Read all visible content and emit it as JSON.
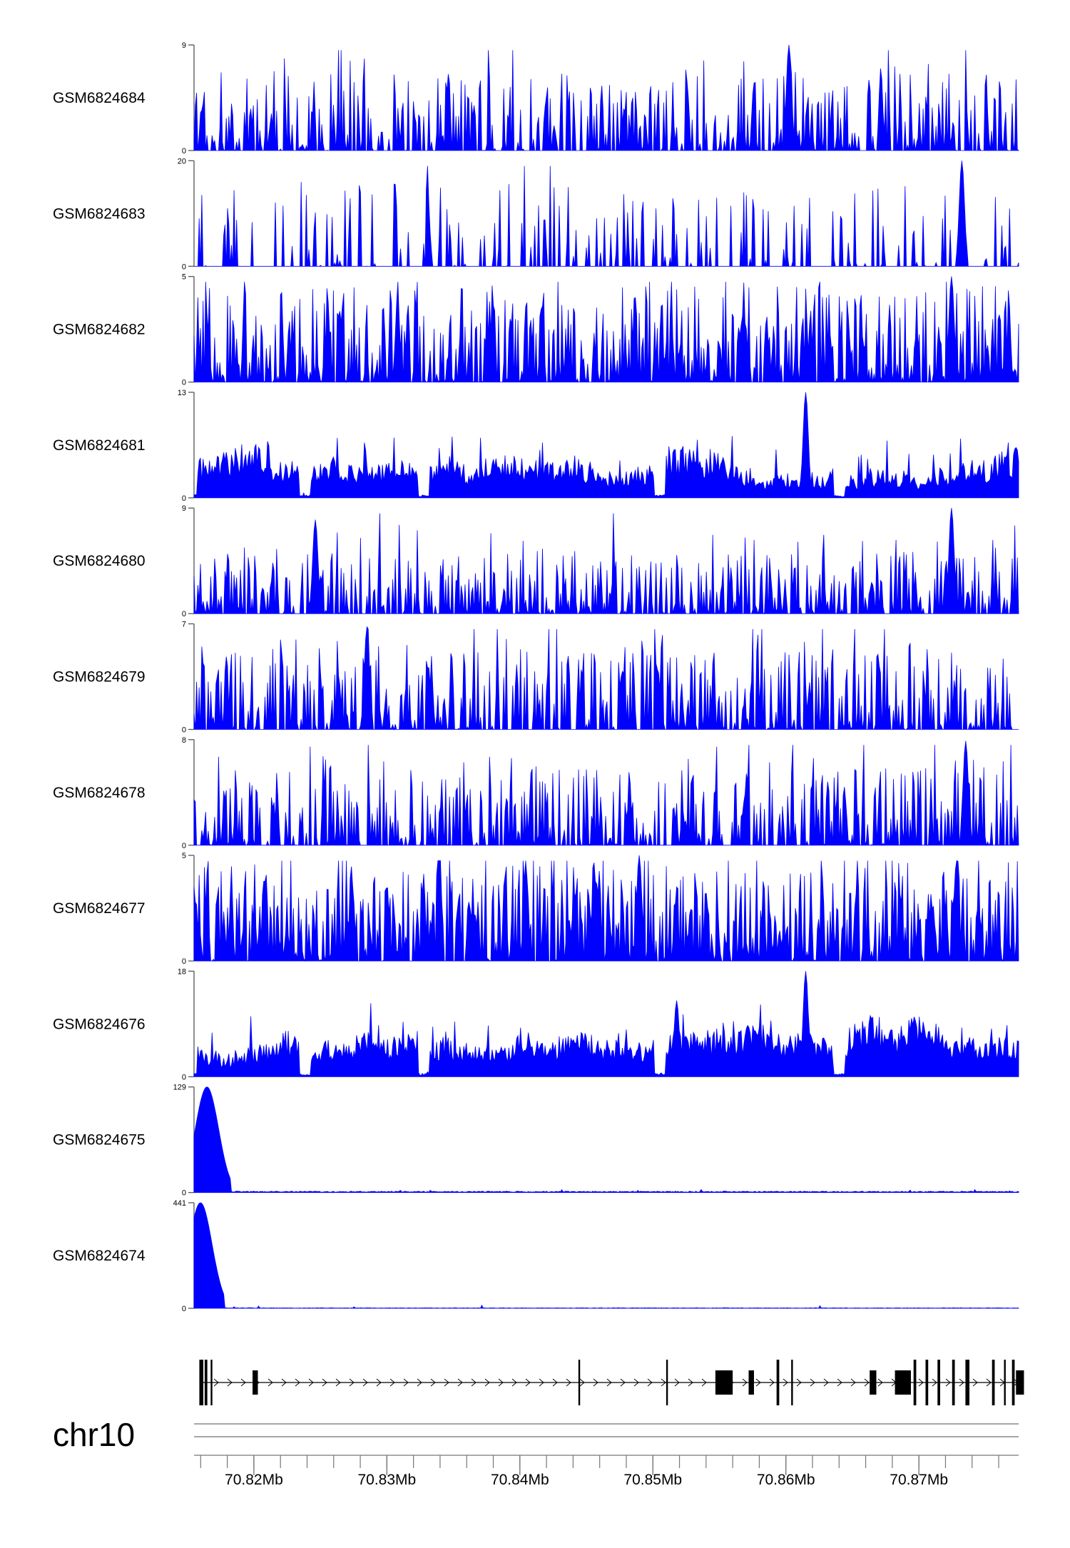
{
  "chart_data": {
    "type": "area",
    "title": "",
    "chromosome": "chr10",
    "xlabel": "",
    "ylabel": "",
    "x_range_mb": [
      70.8155,
      70.8775
    ],
    "x_ticks": [
      {
        "mb": 70.82,
        "label": "70.82Mb"
      },
      {
        "mb": 70.83,
        "label": "70.83Mb"
      },
      {
        "mb": 70.84,
        "label": "70.84Mb"
      },
      {
        "mb": 70.85,
        "label": "70.85Mb"
      },
      {
        "mb": 70.86,
        "label": "70.86Mb"
      },
      {
        "mb": 70.87,
        "label": "70.87Mb"
      }
    ],
    "minor_tick_step_mb": 0.002,
    "color": "#0000ff",
    "series": [
      {
        "name": "GSM6824684",
        "ymax": 9,
        "ymax_label": "9",
        "ymin_label": "0",
        "profile": "spiky",
        "seed": 11,
        "density": 0.55,
        "mean": 0.28,
        "peaks": [
          {
            "mb": 70.8602,
            "value": 9
          }
        ]
      },
      {
        "name": "GSM6824683",
        "ymax": 20,
        "ymax_label": "20",
        "ymin_label": "0",
        "profile": "sparse",
        "seed": 23,
        "density": 0.4,
        "mean": 0.3,
        "peaks": [
          {
            "mb": 70.8732,
            "value": 20
          }
        ]
      },
      {
        "name": "GSM6824682",
        "ymax": 5,
        "ymax_label": "5",
        "ymin_label": "0",
        "profile": "dense",
        "seed": 37,
        "density": 0.8,
        "mean": 0.35,
        "peaks": [
          {
            "mb": 70.8725,
            "value": 5
          }
        ]
      },
      {
        "name": "GSM6824681",
        "ymax": 13,
        "ymax_label": "13",
        "ymin_label": "0",
        "profile": "broad",
        "seed": 41,
        "density": 1.0,
        "mean": 0.45,
        "peaks": [
          {
            "mb": 70.8615,
            "value": 13
          }
        ]
      },
      {
        "name": "GSM6824680",
        "ymax": 9,
        "ymax_label": "9",
        "ymin_label": "0",
        "profile": "spiky",
        "seed": 53,
        "density": 0.6,
        "mean": 0.22,
        "peaks": [
          {
            "mb": 70.8725,
            "value": 9
          },
          {
            "mb": 70.8246,
            "value": 8
          }
        ]
      },
      {
        "name": "GSM6824679",
        "ymax": 7,
        "ymax_label": "7",
        "ymin_label": "0",
        "profile": "spiky",
        "seed": 67,
        "density": 0.62,
        "mean": 0.3,
        "peaks": [
          {
            "mb": 70.8285,
            "value": 6.8
          }
        ]
      },
      {
        "name": "GSM6824678",
        "ymax": 8,
        "ymax_label": "8",
        "ymin_label": "0",
        "profile": "spiky",
        "seed": 71,
        "density": 0.62,
        "mean": 0.28,
        "peaks": [
          {
            "mb": 70.8735,
            "value": 7.9
          }
        ]
      },
      {
        "name": "GSM6824677",
        "ymax": 5,
        "ymax_label": "5",
        "ymin_label": "0",
        "profile": "dense",
        "seed": 83,
        "density": 0.85,
        "mean": 0.38,
        "peaks": [
          {
            "mb": 70.849,
            "value": 5
          }
        ]
      },
      {
        "name": "GSM6824676",
        "ymax": 18,
        "ymax_label": "18",
        "ymin_label": "0",
        "profile": "broad",
        "seed": 97,
        "density": 1.0,
        "mean": 0.25,
        "peaks": [
          {
            "mb": 70.8615,
            "value": 18
          },
          {
            "mb": 70.8518,
            "value": 13
          }
        ]
      },
      {
        "name": "GSM6824675",
        "ymax": 129,
        "ymax_label": "129",
        "ymin_label": "0",
        "profile": "tss_peak",
        "seed": 101,
        "density": 1.0,
        "mean": 0.01,
        "peaks": [
          {
            "mb": 70.8165,
            "value": 129
          }
        ]
      },
      {
        "name": "GSM6824674",
        "ymax": 441,
        "ymax_label": "441",
        "ymin_label": "0",
        "profile": "tss_peak",
        "seed": 113,
        "density": 1.0,
        "mean": 0.004,
        "peaks": [
          {
            "mb": 70.816,
            "value": 441
          }
        ]
      }
    ],
    "gene_track": {
      "strand": "+",
      "exons_mb": [
        [
          70.8159,
          70.8162
        ],
        [
          70.8163,
          70.8165
        ],
        [
          70.81675,
          70.8168
        ],
        [
          70.8199,
          70.8203
        ],
        [
          70.8444,
          70.8445
        ],
        [
          70.851,
          70.8511
        ],
        [
          70.8547,
          70.856
        ],
        [
          70.8572,
          70.8576
        ],
        [
          70.8593,
          70.8595
        ],
        [
          70.8604,
          70.8605
        ],
        [
          70.8663,
          70.8668
        ],
        [
          70.8682,
          70.8694
        ],
        [
          70.8696,
          70.8698
        ],
        [
          70.8705,
          70.8707
        ],
        [
          70.8714,
          70.8716
        ],
        [
          70.8725,
          70.8727
        ],
        [
          70.8735,
          70.8738
        ],
        [
          70.8755,
          70.8757
        ],
        [
          70.8764,
          70.8765
        ],
        [
          70.877,
          70.8772
        ],
        [
          70.8773,
          70.8779
        ]
      ]
    }
  }
}
